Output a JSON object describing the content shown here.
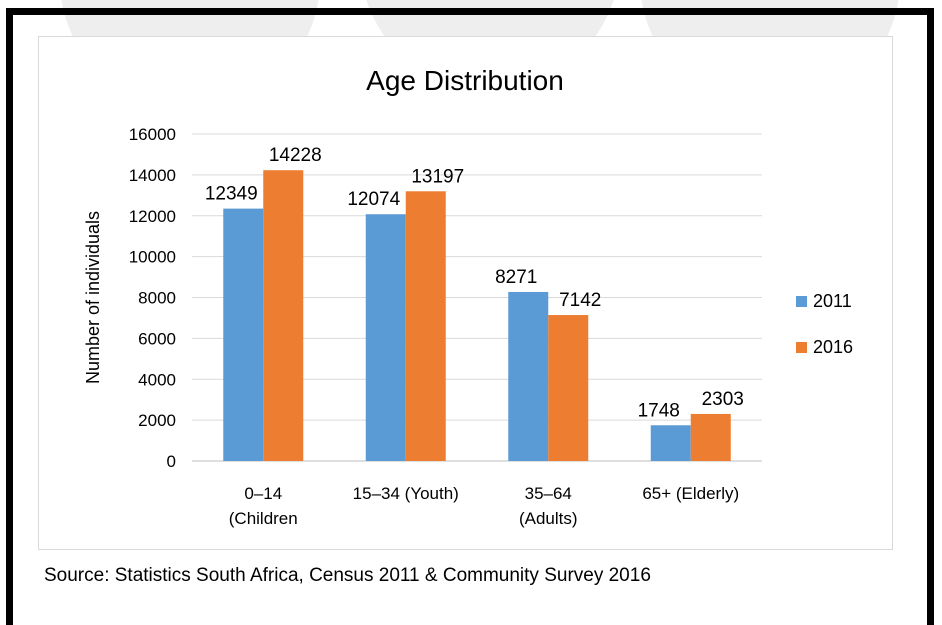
{
  "chart_data": {
    "type": "bar",
    "title": "Age Distribution",
    "xlabel": "",
    "ylabel": "Number of individuals",
    "ylim": [
      0,
      16000
    ],
    "yticks": [
      0,
      2000,
      4000,
      6000,
      8000,
      10000,
      12000,
      14000,
      16000
    ],
    "categories": [
      [
        "0–14",
        "(Children"
      ],
      [
        "15–34 (Youth)"
      ],
      [
        "35–64",
        "(Adults)"
      ],
      [
        "65+ (Elderly)"
      ]
    ],
    "series": [
      {
        "name": "2011",
        "color": "#5b9bd5",
        "values": [
          12349,
          12074,
          8271,
          1748
        ]
      },
      {
        "name": "2016",
        "color": "#ed7d31",
        "values": [
          14228,
          13197,
          7142,
          2303
        ]
      }
    ],
    "grid": true,
    "legend": "right"
  },
  "source": "Source: Statistics South Africa, Census 2011 & Community Survey 2016"
}
